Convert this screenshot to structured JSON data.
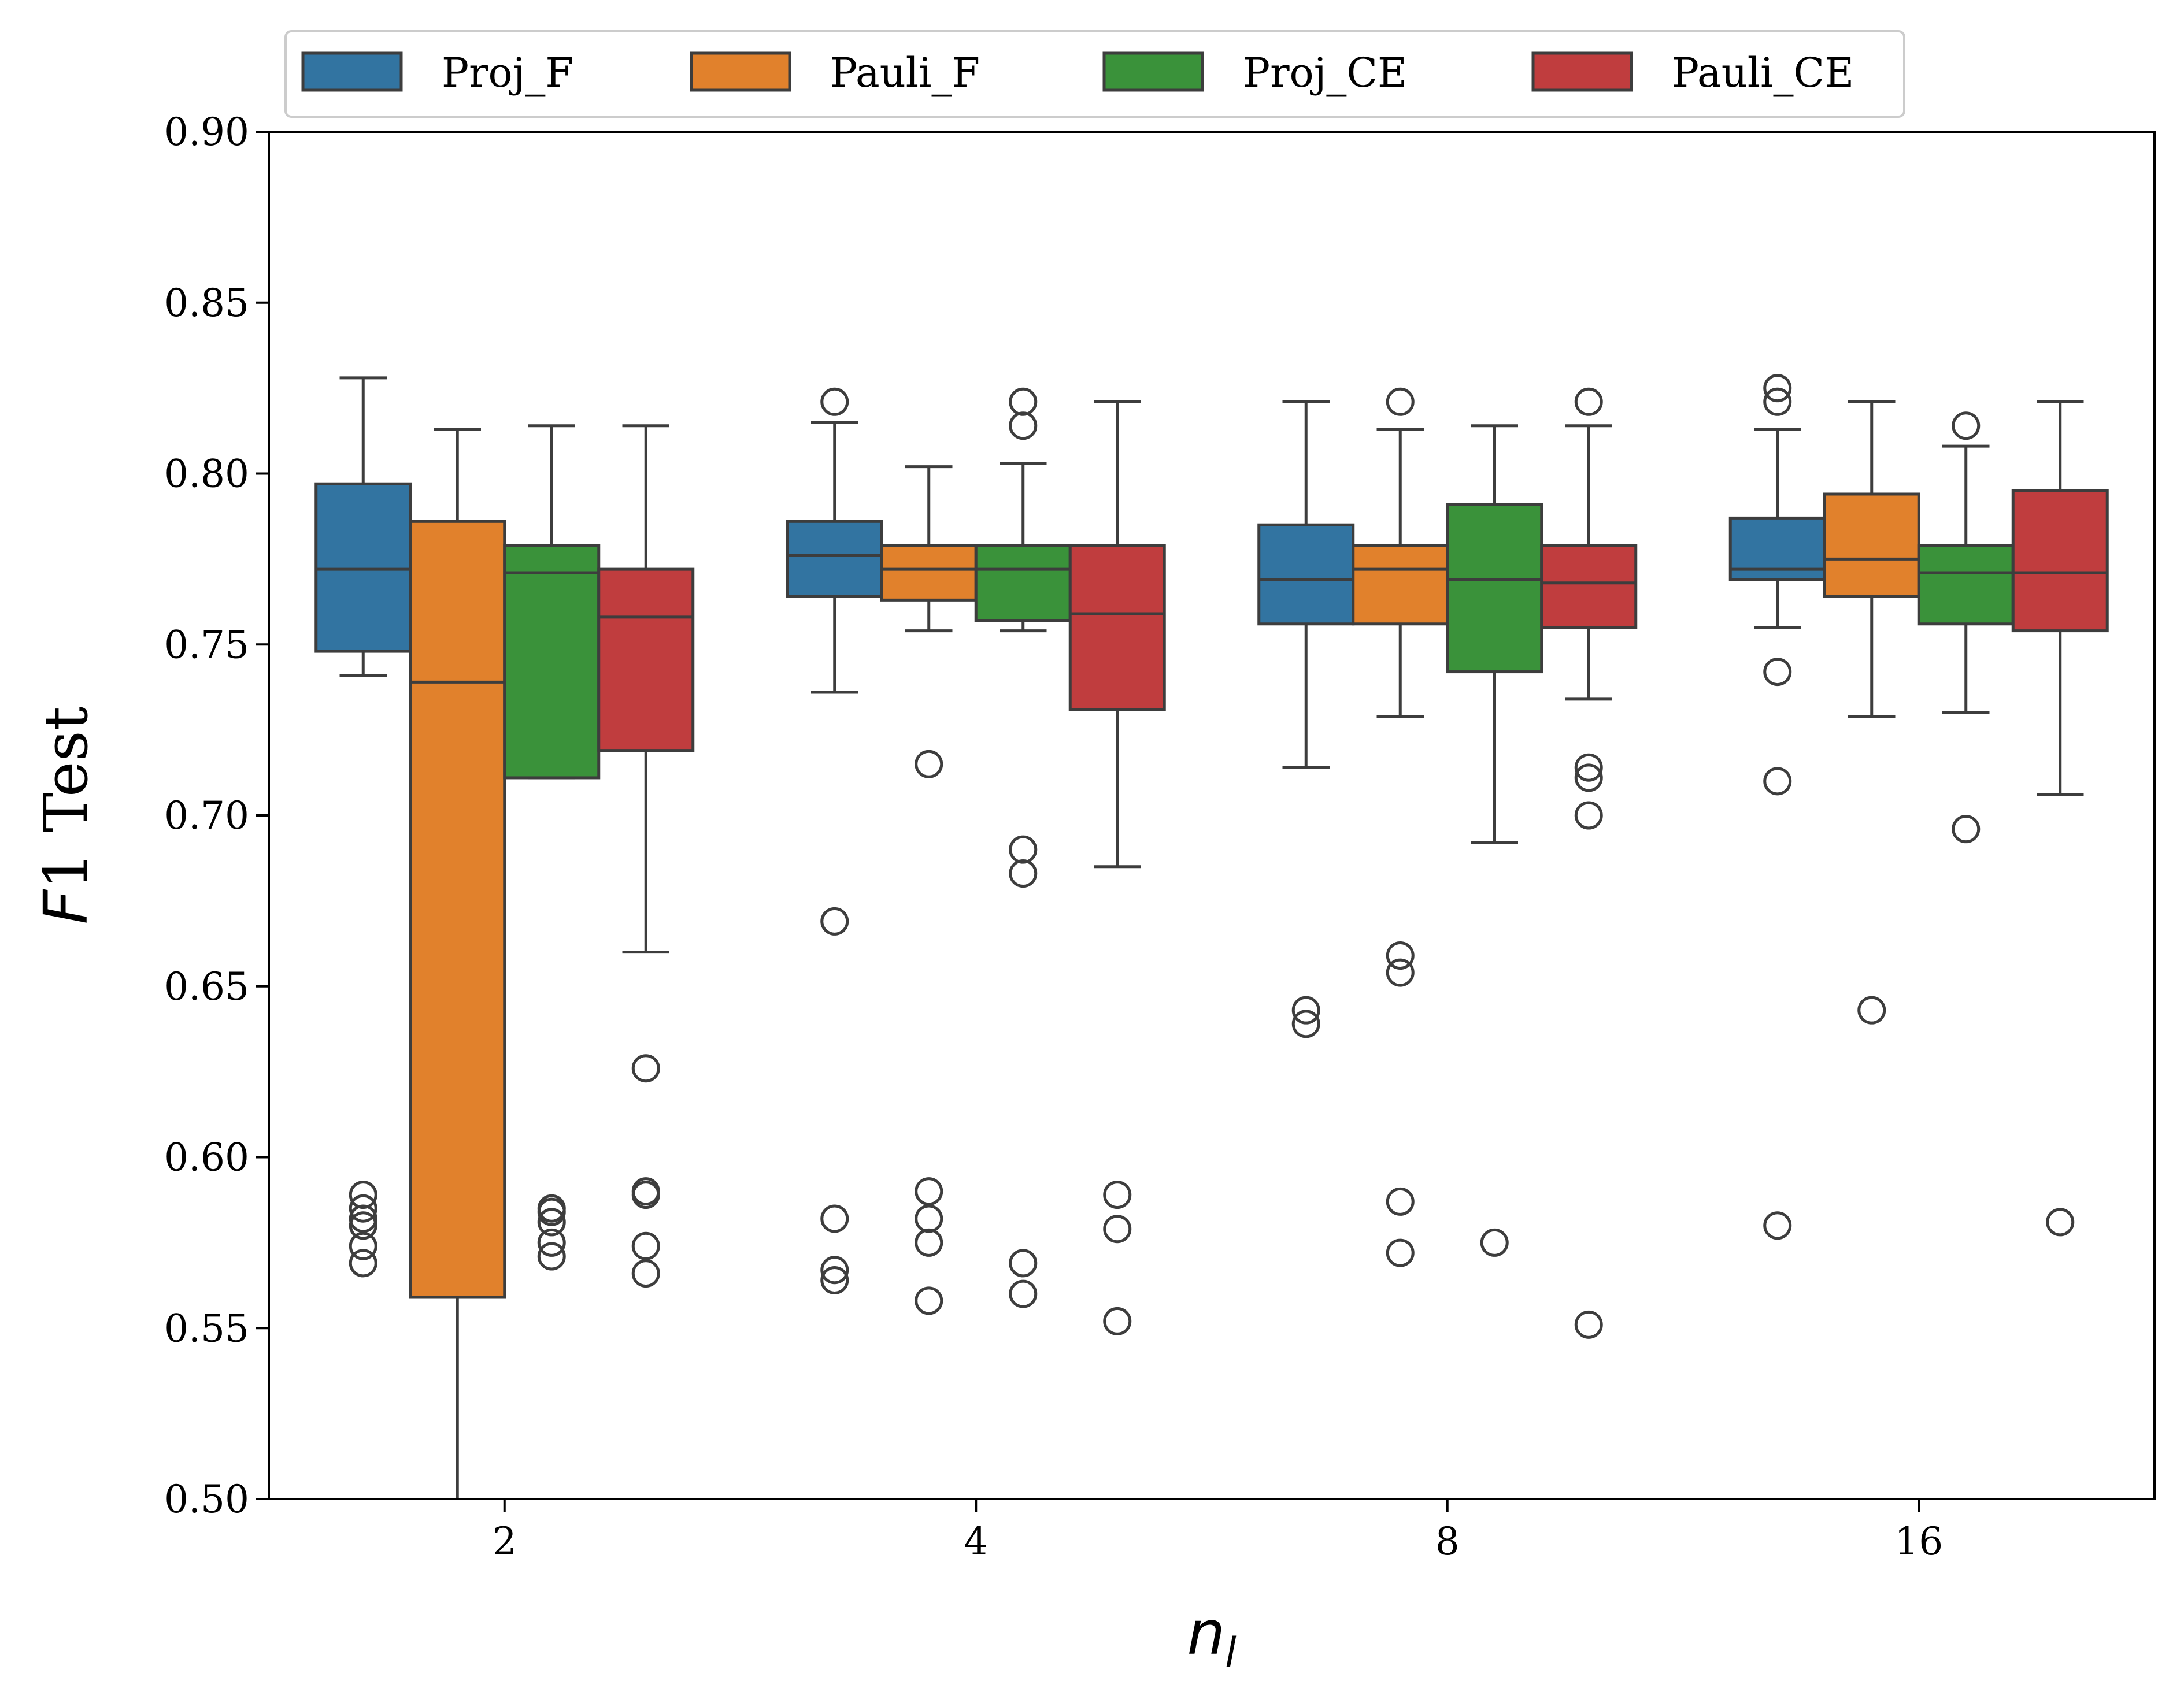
{
  "chart_data": {
    "type": "box",
    "title": "",
    "xlabel": "n_l",
    "ylabel": "F1 Test",
    "categories": [
      "2",
      "4",
      "8",
      "16"
    ],
    "ylim": [
      0.5,
      0.9
    ],
    "yticks": [
      "0.50",
      "0.55",
      "0.60",
      "0.65",
      "0.70",
      "0.75",
      "0.80",
      "0.85",
      "0.90"
    ],
    "legend_position": "top-left, above plot",
    "series": [
      {
        "name": "Proj_F",
        "color": "#3274a1",
        "boxes": [
          {
            "whislo": 0.741,
            "q1": 0.748,
            "med": 0.772,
            "q3": 0.797,
            "whishi": 0.828,
            "fliers": [
              0.589,
              0.585,
              0.582,
              0.58,
              0.574,
              0.569
            ]
          },
          {
            "whislo": 0.736,
            "q1": 0.764,
            "med": 0.776,
            "q3": 0.786,
            "whishi": 0.815,
            "fliers": [
              0.821,
              0.669,
              0.582,
              0.567,
              0.564
            ]
          },
          {
            "whislo": 0.714,
            "q1": 0.756,
            "med": 0.769,
            "q3": 0.785,
            "whishi": 0.821,
            "fliers": [
              0.643,
              0.639
            ]
          },
          {
            "whislo": 0.755,
            "q1": 0.769,
            "med": 0.772,
            "q3": 0.787,
            "whishi": 0.813,
            "fliers": [
              0.825,
              0.821,
              0.742,
              0.71,
              0.58
            ]
          }
        ]
      },
      {
        "name": "Pauli_F",
        "color": "#e1812c",
        "boxes": [
          {
            "whislo": 0.49,
            "q1": 0.559,
            "med": 0.739,
            "q3": 0.786,
            "whishi": 0.813,
            "fliers": []
          },
          {
            "whislo": 0.754,
            "q1": 0.763,
            "med": 0.772,
            "q3": 0.779,
            "whishi": 0.802,
            "fliers": [
              0.715,
              0.59,
              0.582,
              0.575,
              0.558
            ]
          },
          {
            "whislo": 0.729,
            "q1": 0.756,
            "med": 0.772,
            "q3": 0.779,
            "whishi": 0.813,
            "fliers": [
              0.821,
              0.659,
              0.654,
              0.587,
              0.572
            ]
          },
          {
            "whislo": 0.729,
            "q1": 0.764,
            "med": 0.775,
            "q3": 0.794,
            "whishi": 0.821,
            "fliers": [
              0.643
            ]
          }
        ]
      },
      {
        "name": "Proj_CE",
        "color": "#3a923a",
        "boxes": [
          {
            "whislo": 0.711,
            "q1": 0.711,
            "med": 0.771,
            "q3": 0.779,
            "whishi": 0.814,
            "fliers": [
              0.585,
              0.584,
              0.581,
              0.575,
              0.571
            ]
          },
          {
            "whislo": 0.754,
            "q1": 0.757,
            "med": 0.772,
            "q3": 0.779,
            "whishi": 0.803,
            "fliers": [
              0.821,
              0.814,
              0.69,
              0.683,
              0.569,
              0.56
            ]
          },
          {
            "whislo": 0.692,
            "q1": 0.742,
            "med": 0.769,
            "q3": 0.791,
            "whishi": 0.814,
            "fliers": [
              0.575
            ]
          },
          {
            "whislo": 0.73,
            "q1": 0.756,
            "med": 0.771,
            "q3": 0.779,
            "whishi": 0.808,
            "fliers": [
              0.814,
              0.696
            ]
          }
        ]
      },
      {
        "name": "Pauli_CE",
        "color": "#c03d3e",
        "boxes": [
          {
            "whislo": 0.66,
            "q1": 0.719,
            "med": 0.758,
            "q3": 0.772,
            "whishi": 0.814,
            "fliers": [
              0.626,
              0.59,
              0.589,
              0.574,
              0.566
            ]
          },
          {
            "whislo": 0.685,
            "q1": 0.731,
            "med": 0.759,
            "q3": 0.779,
            "whishi": 0.821,
            "fliers": [
              0.589,
              0.579,
              0.552
            ]
          },
          {
            "whislo": 0.734,
            "q1": 0.755,
            "med": 0.768,
            "q3": 0.779,
            "whishi": 0.814,
            "fliers": [
              0.821,
              0.714,
              0.711,
              0.7,
              0.551
            ]
          },
          {
            "whislo": 0.706,
            "q1": 0.754,
            "med": 0.771,
            "q3": 0.795,
            "whishi": 0.821,
            "fliers": [
              0.581
            ]
          }
        ]
      }
    ]
  }
}
